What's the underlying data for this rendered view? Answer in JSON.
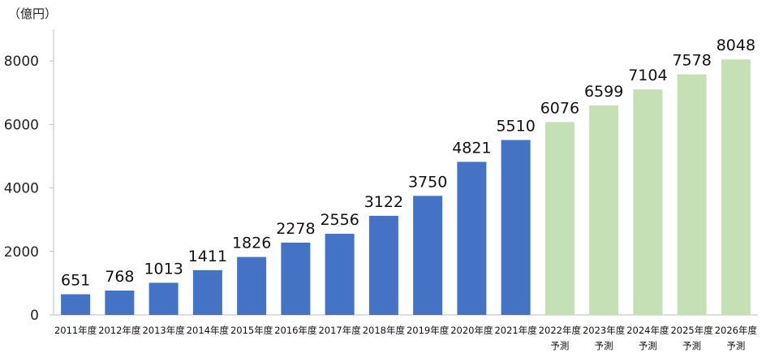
{
  "chart_data": {
    "type": "bar",
    "unit_label": "（億円）",
    "categories": [
      [
        "2011年度"
      ],
      [
        "2012年度"
      ],
      [
        "2013年度"
      ],
      [
        "2014年度"
      ],
      [
        "2015年度"
      ],
      [
        "2016年度"
      ],
      [
        "2017年度"
      ],
      [
        "2018年度"
      ],
      [
        "2019年度"
      ],
      [
        "2020年度"
      ],
      [
        "2021年度"
      ],
      [
        "2022年度",
        "予測"
      ],
      [
        "2023年度",
        "予測"
      ],
      [
        "2024年度",
        "予測"
      ],
      [
        "2025年度",
        "予測"
      ],
      [
        "2026年度",
        "予測"
      ]
    ],
    "values": [
      651,
      768,
      1013,
      1411,
      1826,
      2278,
      2556,
      3122,
      3750,
      4821,
      5510,
      6076,
      6599,
      7104,
      7578,
      8048
    ],
    "forecast": [
      false,
      false,
      false,
      false,
      false,
      false,
      false,
      false,
      false,
      false,
      false,
      true,
      true,
      true,
      true,
      true
    ],
    "ylim": [
      0,
      9000
    ],
    "yticks": [
      0,
      2000,
      4000,
      6000,
      8000
    ],
    "colors": {
      "actual": "#4472C4",
      "forecast": "#C5E0B4"
    },
    "grid": false
  }
}
